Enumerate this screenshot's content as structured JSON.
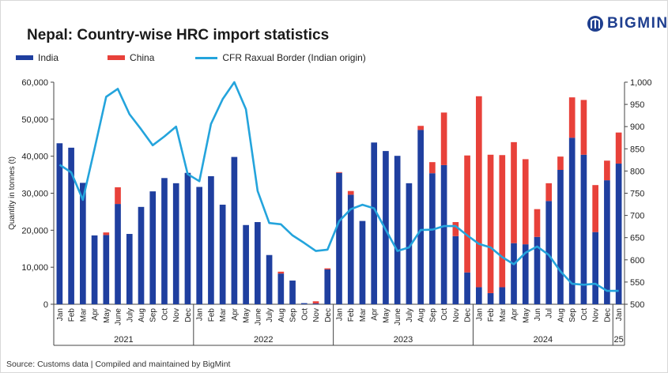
{
  "title": "Nepal: Country-wise HRC import statistics",
  "logo": {
    "text": "BIGMINT",
    "icon": "bigmint-logo-icon"
  },
  "legend": [
    {
      "label": "India",
      "color": "#1f3f9f",
      "kind": "bar"
    },
    {
      "label": "China",
      "color": "#e8413a",
      "kind": "bar"
    },
    {
      "label": "CFR Raxual Border (Indian origin)",
      "color": "#24a4dc",
      "kind": "line"
    }
  ],
  "source": "Source: Customs data  |  Compiled and maintained by BigMint",
  "chart_data": {
    "type": "bar",
    "stacked": true,
    "ylabel": "Quantity in tonnes (t)",
    "ylim": [
      0,
      60000
    ],
    "yticks": [
      "0",
      "10,000",
      "20,000",
      "30,000",
      "40,000",
      "50,000",
      "60,000"
    ],
    "y2lim": [
      500,
      1000
    ],
    "y2ticks": [
      "500",
      "550",
      "600",
      "650",
      "700",
      "750",
      "800",
      "850",
      "900",
      "950",
      "1,000"
    ],
    "categories": [
      "Jan",
      "Feb",
      "Mar",
      "Apr",
      "May",
      "June",
      "July",
      "Aug",
      "Sep",
      "Oct",
      "Nov",
      "Dec",
      "Jan",
      "Feb",
      "Mar",
      "Apr",
      "May",
      "June",
      "July",
      "Aug",
      "Sep",
      "Oct",
      "Nov",
      "Dec",
      "Jan",
      "Feb",
      "Mar",
      "Apr",
      "May",
      "June",
      "July",
      "Aug",
      "Sep",
      "Oct",
      "Nov",
      "Dec",
      "Jan",
      "Feb",
      "Mar",
      "Apr",
      "May",
      "Jun",
      "Jul",
      "Aug",
      "Sep",
      "Oct",
      "Nov",
      "Dec",
      "Jan"
    ],
    "years": [
      {
        "label": "2021",
        "count": 12
      },
      {
        "label": "2022",
        "count": 12
      },
      {
        "label": "2023",
        "count": 12
      },
      {
        "label": "2024",
        "count": 12
      },
      {
        "label": "25",
        "count": 1
      }
    ],
    "series": [
      {
        "name": "India",
        "color": "#1f3f9f",
        "values": [
          43500,
          42300,
          32800,
          18600,
          18700,
          27100,
          19000,
          26300,
          30500,
          34100,
          32700,
          35500,
          31700,
          34600,
          26900,
          39800,
          21400,
          22200,
          13300,
          8300,
          6400,
          300,
          200,
          9400,
          35500,
          29600,
          22500,
          43700,
          41400,
          40100,
          32700,
          47100,
          35400,
          37600,
          18400,
          8600,
          4600,
          3000,
          4600,
          16500,
          16200,
          18200,
          27900,
          36300,
          45000,
          40400,
          19500,
          33500,
          38000
        ]
      },
      {
        "name": "China",
        "color": "#e8413a",
        "values": [
          0,
          0,
          0,
          0,
          700,
          4500,
          0,
          0,
          0,
          0,
          0,
          0,
          0,
          0,
          0,
          0,
          0,
          0,
          0,
          500,
          0,
          0,
          600,
          300,
          200,
          1000,
          0,
          0,
          0,
          0,
          0,
          1100,
          3000,
          14200,
          3800,
          31600,
          51600,
          37400,
          35700,
          27300,
          23000,
          7500,
          4800,
          3600,
          10900,
          14800,
          12700,
          5300,
          8400
        ]
      },
      {
        "name": "CFR Raxual Border (Indian origin)",
        "color": "#24a4dc",
        "axis": "right",
        "kind": "line",
        "values": [
          814,
          797,
          735,
          850,
          967,
          985,
          928,
          894,
          858,
          878,
          900,
          793,
          777,
          906,
          962,
          1000,
          939,
          755,
          683,
          680,
          655,
          638,
          620,
          623,
          687,
          714,
          724,
          716,
          668,
          620,
          628,
          667,
          668,
          676,
          676,
          655,
          636,
          628,
          606,
          590,
          616,
          630,
          611,
          574,
          546,
          544,
          546,
          530,
          530
        ]
      }
    ]
  }
}
